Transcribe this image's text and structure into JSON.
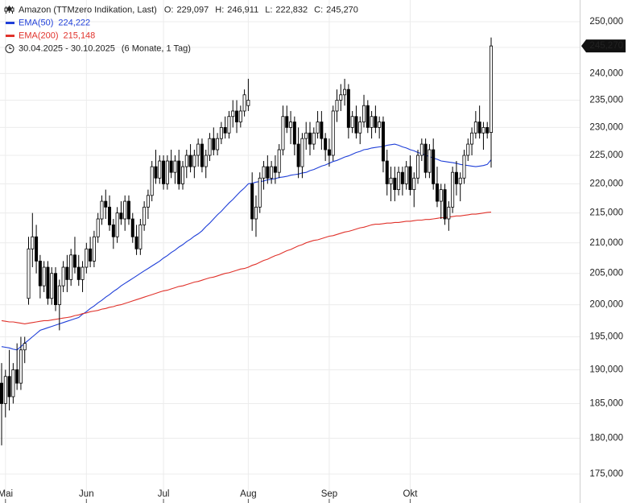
{
  "chart_data": {
    "type": "candlestick",
    "header": {
      "title": "Amazon (TTMzero Indikation, Last)",
      "ohlc": [
        {
          "key": "O:",
          "label": "229,097"
        },
        {
          "key": "H:",
          "label": "246,911"
        },
        {
          "key": "L:",
          "label": "222,832"
        },
        {
          "key": "C:",
          "label": "245,270"
        }
      ],
      "period": "30.04.2025 - 30.10.2025",
      "period_note": "(6 Monate, 1 Tag)"
    },
    "log_scale": true,
    "grid": true,
    "up_color": "#ffffff",
    "down_color": "#000000",
    "ylim": [
      171.05,
      254.32
    ],
    "yticks": [
      {
        "value": 175,
        "label": "175,000"
      },
      {
        "value": 180,
        "label": "180,000"
      },
      {
        "value": 185,
        "label": "185,000"
      },
      {
        "value": 190,
        "label": "190,000"
      },
      {
        "value": 195,
        "label": "195,000"
      },
      {
        "value": 200,
        "label": "200,000"
      },
      {
        "value": 205,
        "label": "205,000"
      },
      {
        "value": 210,
        "label": "210,000"
      },
      {
        "value": 215,
        "label": "215,000"
      },
      {
        "value": 220,
        "label": "220,000"
      },
      {
        "value": 225,
        "label": "225,000"
      },
      {
        "value": 230,
        "label": "230,000"
      },
      {
        "value": 235,
        "label": "235,000"
      },
      {
        "value": 240,
        "label": "240,000"
      },
      {
        "value": 245,
        "label": "245,000"
      },
      {
        "value": 250,
        "label": "250,000"
      }
    ],
    "last_price": {
      "value": 245.27,
      "label": "245,270"
    },
    "categories": [
      null,
      "Mai",
      null,
      null,
      null,
      null,
      null,
      null,
      null,
      null,
      null,
      null,
      null,
      null,
      null,
      null,
      null,
      null,
      null,
      null,
      null,
      null,
      "Jun",
      null,
      null,
      null,
      null,
      null,
      null,
      null,
      null,
      null,
      null,
      null,
      null,
      null,
      null,
      null,
      null,
      null,
      null,
      null,
      "Jul",
      null,
      null,
      null,
      null,
      null,
      null,
      null,
      null,
      null,
      null,
      null,
      null,
      null,
      null,
      null,
      null,
      null,
      null,
      null,
      null,
      null,
      "Aug",
      null,
      null,
      null,
      null,
      null,
      null,
      null,
      null,
      null,
      null,
      null,
      null,
      null,
      null,
      null,
      null,
      null,
      null,
      null,
      null,
      "Sep",
      null,
      null,
      null,
      null,
      null,
      null,
      null,
      null,
      null,
      null,
      null,
      null,
      null,
      null,
      null,
      null,
      null,
      null,
      null,
      null,
      "Okt",
      null,
      null,
      null,
      null,
      null,
      null,
      null,
      null,
      null,
      null,
      null,
      null,
      null,
      null,
      null,
      null,
      null,
      null,
      null,
      null,
      null
    ],
    "open": [
      188,
      185,
      189,
      186,
      190,
      188,
      193,
      201,
      209,
      211,
      207,
      203,
      206,
      201,
      205,
      200,
      203,
      206,
      204,
      208,
      206,
      204,
      206,
      209,
      207,
      211,
      214,
      217,
      216,
      213,
      211,
      215,
      214,
      217,
      214,
      211,
      209,
      213,
      216,
      218,
      223,
      221,
      224,
      220,
      224,
      222,
      224,
      220,
      223,
      225,
      223,
      225,
      227,
      223,
      225,
      228,
      226,
      228,
      230,
      229,
      232,
      233,
      231,
      233,
      234,
      220,
      214,
      216,
      221,
      223,
      221,
      223,
      222,
      226,
      232,
      230,
      231,
      227,
      223,
      228,
      229,
      227,
      229,
      231,
      228,
      226,
      225,
      233,
      235,
      236,
      237,
      230,
      232,
      229,
      231,
      234,
      230,
      232,
      230,
      231,
      224,
      220,
      221,
      219,
      222,
      220,
      223,
      219,
      221,
      225,
      227,
      222,
      226,
      220,
      217,
      219,
      214,
      216,
      222,
      220,
      221,
      225,
      227,
      229,
      231,
      229,
      230,
      229.097
    ],
    "high": [
      191,
      190,
      193,
      191,
      194,
      195,
      195,
      211,
      215,
      213,
      208,
      207,
      207,
      206,
      206,
      204,
      207,
      208,
      209,
      211,
      208,
      207,
      210,
      211,
      212,
      215,
      218,
      219,
      218,
      214,
      216,
      217,
      218,
      218,
      215,
      213,
      214,
      217,
      219,
      224,
      226,
      225,
      225,
      225,
      226,
      225,
      226,
      224,
      226,
      227,
      226,
      228,
      228,
      226,
      229,
      230,
      229,
      231,
      232,
      233,
      235,
      235,
      234,
      237,
      239,
      222,
      218,
      222,
      224,
      225,
      224,
      225,
      227,
      234,
      234,
      233,
      232,
      230,
      229,
      231,
      231,
      230,
      233,
      233,
      229,
      228,
      234,
      237,
      238,
      239,
      238,
      233,
      234,
      232,
      236,
      235,
      233,
      234,
      232,
      232,
      226,
      223,
      223,
      223,
      223,
      224,
      225,
      222,
      226,
      228,
      228,
      227,
      228,
      223,
      220,
      220,
      217,
      223,
      224,
      222,
      226,
      228,
      230,
      233,
      234,
      231,
      231,
      246.911
    ],
    "low": [
      179,
      183,
      184,
      185,
      187,
      187,
      191,
      200,
      206,
      205,
      201,
      202,
      200,
      200,
      199,
      196,
      202,
      202,
      203,
      205,
      203,
      202,
      205,
      206,
      206,
      210,
      213,
      214,
      212,
      209,
      210,
      213,
      212,
      213,
      210,
      208,
      208,
      212,
      214,
      217,
      220,
      220,
      219,
      219,
      221,
      220,
      219,
      219,
      221,
      222,
      221,
      223,
      222,
      221,
      224,
      225,
      225,
      227,
      228,
      228,
      230,
      229,
      230,
      232,
      233,
      212,
      211,
      215,
      219,
      220,
      220,
      220,
      221,
      225,
      229,
      227,
      225,
      221,
      221,
      226,
      225,
      226,
      228,
      226,
      224,
      223,
      224,
      231,
      233,
      234,
      228,
      229,
      228,
      227,
      230,
      229,
      228,
      229,
      228,
      222,
      218,
      217,
      217,
      218,
      218,
      219,
      218,
      216,
      220,
      224,
      221,
      221,
      219,
      216,
      214,
      213,
      212,
      215,
      218,
      217,
      220,
      224,
      225,
      228,
      228,
      226,
      228,
      222.832
    ],
    "close": [
      185,
      189,
      186,
      190,
      188,
      193,
      194,
      209,
      211,
      207,
      203,
      206,
      201,
      205,
      200,
      203,
      206,
      204,
      208,
      206,
      204,
      206,
      209,
      207,
      211,
      214,
      217,
      216,
      213,
      211,
      215,
      214,
      217,
      214,
      211,
      209,
      213,
      216,
      218,
      223,
      221,
      224,
      220,
      224,
      222,
      224,
      220,
      223,
      225,
      223,
      225,
      227,
      223,
      225,
      228,
      226,
      228,
      230,
      229,
      232,
      233,
      231,
      233,
      236,
      235,
      214,
      216,
      221,
      223,
      221,
      223,
      222,
      226,
      232,
      230,
      231,
      227,
      223,
      228,
      229,
      227,
      229,
      231,
      228,
      226,
      225,
      233,
      235,
      236,
      237,
      230,
      232,
      229,
      231,
      234,
      230,
      232,
      230,
      231,
      224,
      220,
      221,
      219,
      222,
      220,
      223,
      219,
      221,
      225,
      227,
      222,
      226,
      220,
      217,
      219,
      214,
      216,
      222,
      220,
      221,
      225,
      227,
      229,
      231,
      229,
      230,
      229,
      245.27
    ],
    "series": [
      {
        "name": "EMA(50)",
        "color": "#1f3fd8",
        "last_label": "224,222",
        "values": [
          193.5,
          193.4,
          193.3,
          193.1,
          193.0,
          193.5,
          194.0,
          194.5,
          195.0,
          195.5,
          196.0,
          196.2,
          196.4,
          196.6,
          196.8,
          197.0,
          197.2,
          197.4,
          197.6,
          197.8,
          198.0,
          198.5,
          198.9,
          199.4,
          199.8,
          200.3,
          200.7,
          201.2,
          201.6,
          202.1,
          202.5,
          203.0,
          203.4,
          203.8,
          204.2,
          204.6,
          205.0,
          205.4,
          205.8,
          206.2,
          206.6,
          207.0,
          207.5,
          207.9,
          208.4,
          208.8,
          209.3,
          209.7,
          210.2,
          210.6,
          211.1,
          211.5,
          212.0,
          212.7,
          213.3,
          214.0,
          214.7,
          215.3,
          216.0,
          216.7,
          217.3,
          218.0,
          218.7,
          219.3,
          220.0,
          220.1,
          220.3,
          220.4,
          220.5,
          220.7,
          220.8,
          220.9,
          221.1,
          221.2,
          221.3,
          221.5,
          221.6,
          221.7,
          221.9,
          222.0,
          222.3,
          222.5,
          222.8,
          223.1,
          223.3,
          223.6,
          223.9,
          224.1,
          224.4,
          224.7,
          224.9,
          225.2,
          225.5,
          225.7,
          226.0,
          226.1,
          226.3,
          226.4,
          226.5,
          226.6,
          226.8,
          226.9,
          227.0,
          226.8,
          226.5,
          226.3,
          226.0,
          225.8,
          225.5,
          225.3,
          225.0,
          224.8,
          224.5,
          224.3,
          224.0,
          223.9,
          223.8,
          223.7,
          223.6,
          223.4,
          223.3,
          223.2,
          223.1,
          223.0,
          223.1,
          223.2,
          223.4,
          224.222
        ]
      },
      {
        "name": "EMA(200)",
        "color": "#e0322b",
        "last_label": "215,148",
        "values": [
          197.5,
          197.4,
          197.3,
          197.3,
          197.2,
          197.1,
          197.0,
          197.1,
          197.2,
          197.3,
          197.4,
          197.5,
          197.5,
          197.6,
          197.7,
          197.8,
          197.9,
          198.0,
          198.1,
          198.3,
          198.4,
          198.6,
          198.7,
          198.9,
          199.0,
          199.1,
          199.3,
          199.4,
          199.6,
          199.7,
          199.9,
          200.0,
          200.2,
          200.4,
          200.6,
          200.8,
          201.0,
          201.2,
          201.4,
          201.6,
          201.8,
          202.0,
          202.2,
          202.3,
          202.5,
          202.7,
          202.9,
          203.0,
          203.2,
          203.4,
          203.6,
          203.7,
          203.9,
          204.1,
          204.3,
          204.4,
          204.6,
          204.8,
          205.0,
          205.1,
          205.3,
          205.5,
          205.7,
          205.8,
          206.0,
          206.3,
          206.5,
          206.8,
          207.1,
          207.3,
          207.6,
          207.9,
          208.1,
          208.4,
          208.7,
          208.9,
          209.2,
          209.5,
          209.7,
          210.0,
          210.2,
          210.4,
          210.5,
          210.7,
          210.9,
          211.1,
          211.2,
          211.4,
          211.6,
          211.8,
          211.9,
          212.1,
          212.3,
          212.5,
          212.6,
          212.8,
          213.0,
          213.1,
          213.1,
          213.2,
          213.3,
          213.3,
          213.4,
          213.4,
          213.5,
          213.6,
          213.6,
          213.7,
          213.8,
          213.8,
          213.9,
          213.9,
          214.0,
          214.1,
          214.2,
          214.2,
          214.3,
          214.4,
          214.5,
          214.5,
          214.6,
          214.7,
          214.8,
          214.8,
          214.9,
          215.0,
          215.1,
          215.148
        ]
      }
    ]
  }
}
